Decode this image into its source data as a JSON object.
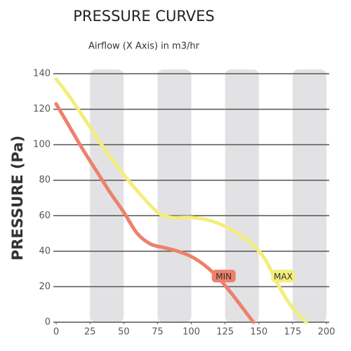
{
  "chart_data": {
    "type": "line",
    "title": "PRESSURE CURVES",
    "subtitle": "Airflow (X Axis) in m3/hr",
    "y_label": "PRESSURE (Pa)",
    "xlim": [
      0,
      200
    ],
    "xticks": [
      0,
      25,
      50,
      75,
      100,
      125,
      150,
      175,
      200
    ],
    "ylim": [
      0,
      140
    ],
    "yticks": [
      0,
      20,
      40,
      60,
      80,
      100,
      120,
      140
    ],
    "grid": true,
    "series": [
      {
        "name": "MIN",
        "color": "#ee806c",
        "x": [
          0,
          10,
          20,
          30,
          40,
          50,
          60,
          70,
          80,
          90,
          100,
          110,
          120,
          130,
          140,
          146
        ],
        "values": [
          123,
          110,
          97,
          85,
          73,
          62,
          50,
          44,
          42,
          40,
          37,
          32,
          25,
          16,
          6,
          0
        ],
        "label_at": [
          124,
          26
        ]
      },
      {
        "name": "MAX",
        "color": "#f3ee7c",
        "x": [
          0,
          10,
          25,
          40,
          60,
          75,
          85,
          100,
          115,
          130,
          145,
          155,
          165,
          175,
          185
        ],
        "values": [
          137,
          127,
          110,
          93,
          74,
          62,
          59,
          59,
          57,
          52,
          44,
          35,
          20,
          8,
          0
        ],
        "label_at": [
          168,
          26
        ]
      }
    ]
  }
}
